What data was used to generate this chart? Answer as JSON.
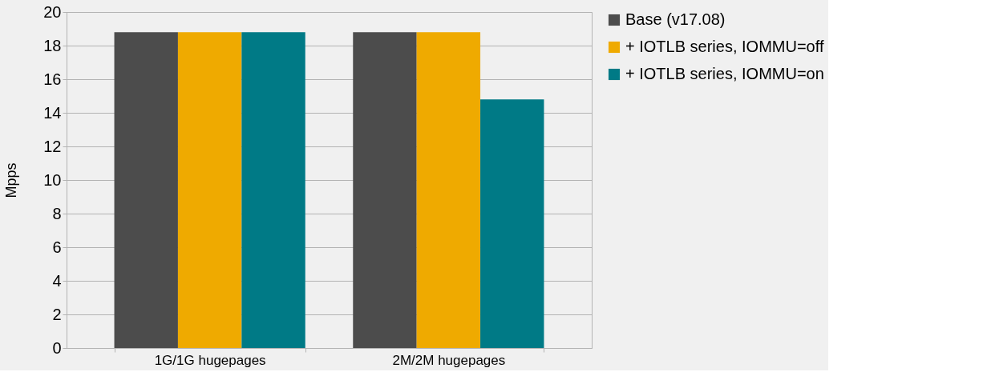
{
  "chart_data": {
    "type": "bar",
    "ylabel": "Mpps",
    "categories": [
      "1G/1G hugepages",
      "2M/2M hugepages"
    ],
    "series": [
      {
        "name": "Base (v17.08)",
        "color": "#4c4c4c",
        "values": [
          18.8,
          18.8
        ]
      },
      {
        "name": "+ IOTLB series, IOMMU=off",
        "color": "#efaa00",
        "values": [
          18.8,
          18.8
        ]
      },
      {
        "name": "+ IOTLB series, IOMMU=on",
        "color": "#007a86",
        "values": [
          18.8,
          14.8
        ]
      }
    ],
    "ylim": [
      0,
      20
    ],
    "yticks": [
      0,
      2,
      4,
      6,
      8,
      10,
      12,
      14,
      16,
      18,
      20
    ],
    "grid": "y",
    "legend": "right"
  }
}
